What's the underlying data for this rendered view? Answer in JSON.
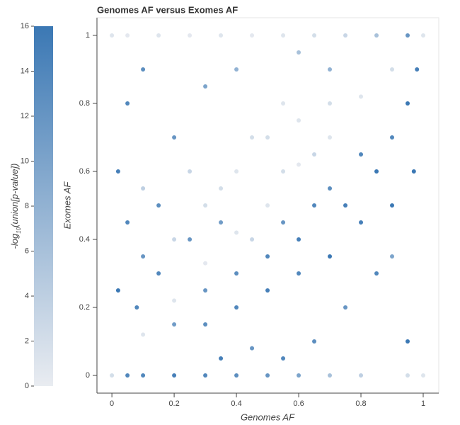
{
  "chart_data": {
    "type": "scatter",
    "title": "Genomes AF versus Exomes AF",
    "x_label": "Genomes AF",
    "y_label": "Exomes AF",
    "colorbar_label": {
      "base": "-log",
      "subscript": "10",
      "rest": "(union[p-value])"
    },
    "xlim": [
      -0.048,
      1.05
    ],
    "ylim": [
      -0.052,
      1.052
    ],
    "xticks": [
      0,
      0.2,
      0.4,
      0.6,
      0.8,
      1
    ],
    "yticks": [
      0,
      0.2,
      0.4,
      0.6,
      0.8,
      1
    ],
    "clim": [
      0,
      16
    ],
    "cticks": [
      0,
      2,
      4,
      6,
      8,
      10,
      12,
      14,
      16
    ],
    "color_low": "#e9ecf1",
    "color_high": "#3b78b4",
    "x": [
      0,
      0.05,
      0.15,
      0.25,
      0.35,
      0.45,
      0.55,
      0.65,
      0.75,
      0.85,
      0.95,
      1,
      0,
      0.05,
      0.1,
      0.2,
      0.3,
      0.4,
      0.5,
      0.6,
      0.7,
      0.8,
      0.95,
      1,
      0.1,
      0.2,
      0.3,
      0.4,
      0.5,
      0.6,
      0.7,
      0.8,
      0.9,
      0.35,
      0.45,
      0.55,
      0.25,
      0.2,
      0.3,
      0.4,
      0.5,
      0.6,
      0.7,
      0.1,
      0.45,
      0.55,
      0.65,
      0.02,
      0.05,
      0.1,
      0.02,
      0.08,
      0.15,
      0.2,
      0.05,
      0.1,
      0.3,
      0.4,
      0.6,
      0.7,
      0.98,
      0.95,
      0.9,
      0.85,
      0.75,
      0.65,
      0.55,
      0.3,
      0.4,
      0.5,
      0.6,
      0.7,
      0.8,
      0.9,
      0.85,
      0.75,
      0.65,
      0.55,
      0.45,
      0.35,
      0.9,
      0.95,
      0.97,
      0.7,
      0.8,
      0.6,
      0.5,
      0.4,
      0.3,
      0.2,
      0.25,
      0.15,
      0.35
    ],
    "y": [
      1,
      1,
      1,
      1,
      1,
      1,
      1,
      1,
      1,
      1,
      1,
      1,
      0,
      0,
      0,
      0,
      0,
      0,
      0,
      0,
      0,
      0,
      0,
      0,
      0.12,
      0.22,
      0.33,
      0.42,
      0.5,
      0.62,
      0.7,
      0.82,
      0.9,
      0.55,
      0.7,
      0.8,
      0.6,
      0.4,
      0.5,
      0.6,
      0.7,
      0.75,
      0.8,
      0.55,
      0.4,
      0.6,
      0.65,
      0.6,
      0.45,
      0.35,
      0.25,
      0.2,
      0.5,
      0.7,
      0.8,
      0.9,
      0.85,
      0.9,
      0.95,
      0.9,
      0.9,
      0.8,
      0.7,
      0.6,
      0.5,
      0.5,
      0.45,
      0.15,
      0.2,
      0.25,
      0.3,
      0.35,
      0.45,
      0.5,
      0.3,
      0.2,
      0.1,
      0.05,
      0.08,
      0.05,
      0.35,
      0.1,
      0.6,
      0.55,
      0.65,
      0.4,
      0.35,
      0.3,
      0.25,
      0.15,
      0.4,
      0.3,
      0.45
    ],
    "color_values": [
      1,
      0.5,
      1,
      0.5,
      1,
      0.5,
      1,
      2,
      3,
      6,
      12,
      1,
      2,
      14,
      14,
      15,
      14,
      13,
      12,
      10,
      6,
      4,
      2,
      1,
      1,
      1,
      0.5,
      1,
      1,
      0.5,
      1,
      1,
      2,
      2,
      2,
      1,
      3,
      3,
      2,
      1,
      2,
      1,
      2,
      4,
      3,
      2,
      3,
      15,
      14,
      12,
      16,
      14,
      13,
      12,
      14,
      13,
      10,
      8,
      6,
      8,
      15,
      16,
      14,
      16,
      15,
      14,
      12,
      13,
      14,
      15,
      14,
      16,
      15,
      16,
      14,
      12,
      13,
      14,
      12,
      15,
      10,
      16,
      16,
      13,
      14,
      15,
      14,
      13,
      12,
      11,
      12,
      14,
      11
    ]
  }
}
